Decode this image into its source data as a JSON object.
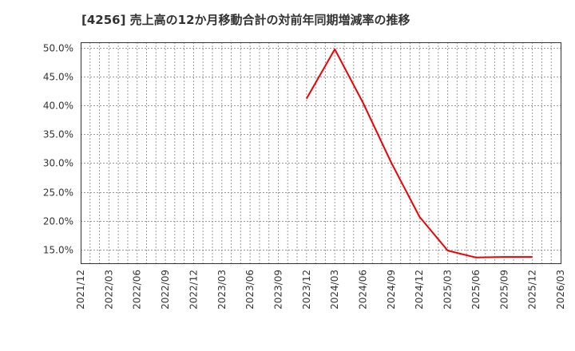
{
  "title": "[4256]  売上高の12か月移動合計の対前年同期増減率の推移",
  "colors": {
    "line": "#ee0000",
    "grid": "#999999",
    "axis": "#333333",
    "text": "#333333"
  },
  "chart_data": {
    "type": "line",
    "title": "[4256]  売上高の12か月移動合計の対前年同期増減率の推移",
    "xlabel": "",
    "ylabel": "",
    "x_ticks": [
      "2021/12",
      "2022/03",
      "2022/06",
      "2022/09",
      "2022/12",
      "2023/03",
      "2023/06",
      "2023/09",
      "2023/12",
      "2024/03",
      "2024/06",
      "2024/09",
      "2024/12",
      "2025/03",
      "2025/06",
      "2025/09",
      "2025/12",
      "2026/03"
    ],
    "y_ticks": [
      "15.0%",
      "20.0%",
      "25.0%",
      "30.0%",
      "35.0%",
      "40.0%",
      "45.0%",
      "50.0%"
    ],
    "y_tick_values": [
      15,
      20,
      25,
      30,
      35,
      40,
      45,
      50
    ],
    "ylim": [
      12.6,
      51.0
    ],
    "xlim": [
      "2021/12",
      "2026/03"
    ],
    "grid": true,
    "legend": "none",
    "series": [
      {
        "name": "売上高12か月移動合計 対前年同期増減率",
        "unit": "%",
        "x": [
          "2023/12",
          "2024/03",
          "2024/06",
          "2024/09",
          "2024/12",
          "2025/03",
          "2025/06",
          "2025/09",
          "2025/12"
        ],
        "values": [
          41.2,
          49.8,
          40.5,
          30.1,
          20.7,
          14.8,
          13.6,
          13.7,
          13.7
        ]
      }
    ]
  }
}
